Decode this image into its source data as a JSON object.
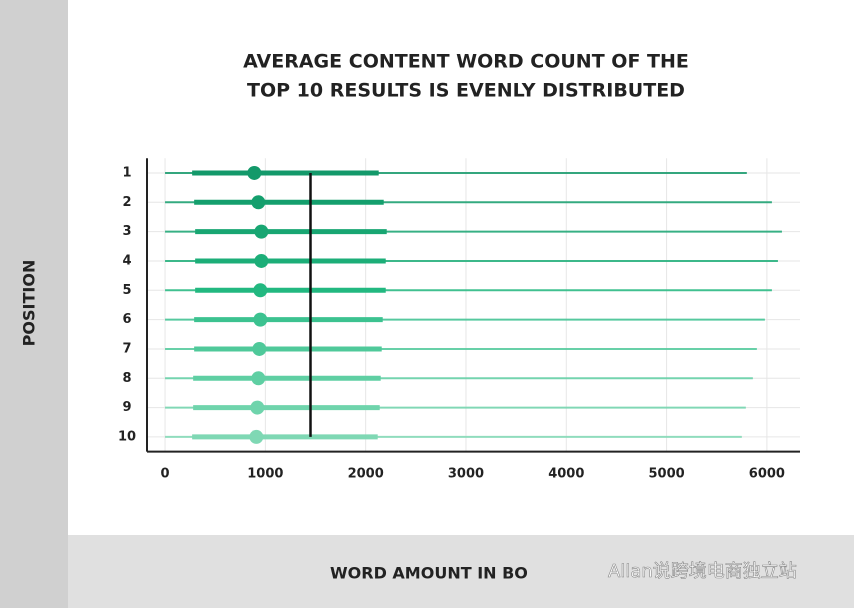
{
  "chart_data": {
    "type": "box",
    "title_lines": [
      "AVERAGE CONTENT WORD COUNT OF THE",
      "TOP 10 RESULTS IS EVENLY DISTRIBUTED"
    ],
    "y_label": "POSITION",
    "x_label": "WORD AMOUNT IN BO",
    "watermark": "Allan说跨境电商独立站",
    "categories": [
      "1",
      "2",
      "3",
      "4",
      "5",
      "6",
      "7",
      "8",
      "9",
      "10"
    ],
    "boxes": [
      {
        "min": 0,
        "q1": 270,
        "median": 890,
        "q3": 2130,
        "max": 5800,
        "color": "#13996a"
      },
      {
        "min": 0,
        "q1": 290,
        "median": 930,
        "q3": 2180,
        "max": 6050,
        "color": "#149f6d"
      },
      {
        "min": 0,
        "q1": 300,
        "median": 960,
        "q3": 2210,
        "max": 6150,
        "color": "#18a672"
      },
      {
        "min": 0,
        "q1": 300,
        "median": 960,
        "q3": 2200,
        "max": 6110,
        "color": "#1cae78"
      },
      {
        "min": 0,
        "q1": 300,
        "median": 950,
        "q3": 2200,
        "max": 6050,
        "color": "#22b880"
      },
      {
        "min": 0,
        "q1": 290,
        "median": 950,
        "q3": 2170,
        "max": 5980,
        "color": "#3cc290"
      },
      {
        "min": 0,
        "q1": 290,
        "median": 940,
        "q3": 2160,
        "max": 5900,
        "color": "#4fc99a"
      },
      {
        "min": 0,
        "q1": 280,
        "median": 930,
        "q3": 2150,
        "max": 5860,
        "color": "#5fcfa3"
      },
      {
        "min": 0,
        "q1": 280,
        "median": 920,
        "q3": 2140,
        "max": 5790,
        "color": "#6fd4ac"
      },
      {
        "min": 0,
        "q1": 270,
        "median": 910,
        "q3": 2120,
        "max": 5750,
        "color": "#7fd8b4"
      }
    ],
    "reference_line": 1450,
    "xlim": [
      -180,
      6330
    ],
    "xticks": [
      0,
      1000,
      2000,
      3000,
      4000,
      5000,
      6000
    ],
    "grid": true
  }
}
